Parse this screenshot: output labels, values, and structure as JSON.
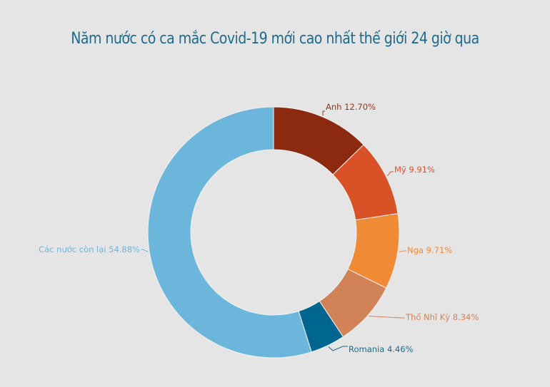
{
  "title": "Năm nước có ca mắc Covid-19 mới cao nhất thế giới 24 giờ qua",
  "background": "#e5e5e5",
  "chart_data": {
    "type": "pie",
    "variant": "donut",
    "title": "Năm nước có ca mắc Covid-19 mới cao nhất thế giới 24 giờ qua",
    "unit": "%",
    "legend": "none (inline labels)",
    "categories": [
      "Anh",
      "Mỹ",
      "Nga",
      "Thổ Nhĩ Kỳ",
      "Romania",
      "Các nước còn lại"
    ],
    "values": [
      12.7,
      9.91,
      9.71,
      8.34,
      4.46,
      54.88
    ],
    "labels": [
      "Anh 12.70%",
      "Mỹ 9.91%",
      "Nga 9.71%",
      "Thổ Nhĩ Kỳ 8.34%",
      "Romania 4.46%",
      "Các nước còn lại 54.88%"
    ],
    "colors": [
      "#8b2a0e",
      "#d95127",
      "#f08a34",
      "#d18257",
      "#006690",
      "#6cb6db"
    ],
    "label_colors": [
      "#8b3a1c",
      "#d9542b",
      "#f08a34",
      "#d1845a",
      "#1f6b8c",
      "#6cb6db"
    ]
  }
}
